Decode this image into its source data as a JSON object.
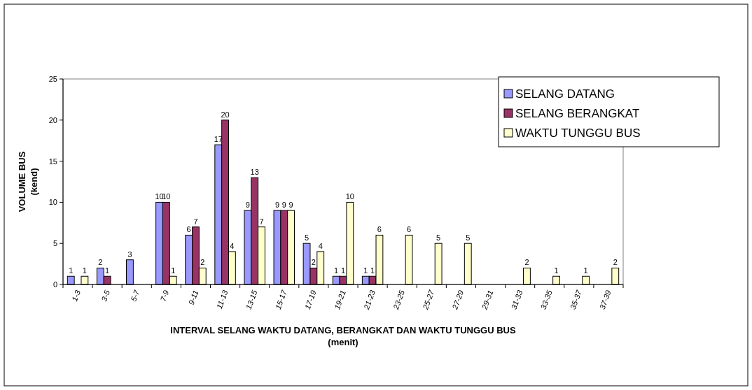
{
  "chart_data": {
    "type": "bar",
    "xlabel": "INTERVAL SELANG WAKTU DATANG, BERANGKAT DAN WAKTU TUNGGU BUS\n(menit)",
    "ylabel": "VOLUME BUS\n(kend)",
    "categories": [
      "1-3",
      "3-5",
      "5-7",
      "7-9",
      "9-11",
      "11-13",
      "13-15",
      "15-17",
      "17-19",
      "19-21",
      "21-23",
      "23-25",
      "25-27",
      "27-29",
      "29-31",
      "31-33",
      "33-35",
      "35-37",
      "37-39"
    ],
    "series": [
      {
        "name": "SELANG DATANG",
        "color": "#9999ff",
        "values": [
          1,
          2,
          3,
          10,
          6,
          17,
          9,
          9,
          5,
          1,
          1,
          null,
          null,
          null,
          null,
          null,
          null,
          null,
          null
        ]
      },
      {
        "name": "SELANG BERANGKAT",
        "color": "#993366",
        "values": [
          null,
          1,
          null,
          10,
          7,
          20,
          13,
          9,
          2,
          1,
          1,
          null,
          null,
          null,
          null,
          null,
          null,
          null,
          null
        ]
      },
      {
        "name": "WAKTU TUNGGU BUS",
        "color": "#ffffcc",
        "values": [
          1,
          null,
          null,
          1,
          2,
          4,
          7,
          9,
          4,
          10,
          6,
          6,
          5,
          5,
          null,
          2,
          1,
          1,
          2
        ]
      }
    ],
    "ylim": [
      0,
      25
    ],
    "yticks": [
      0,
      5,
      10,
      15,
      20,
      25
    ],
    "grid": false,
    "legend": "top right",
    "data_labels": true
  }
}
